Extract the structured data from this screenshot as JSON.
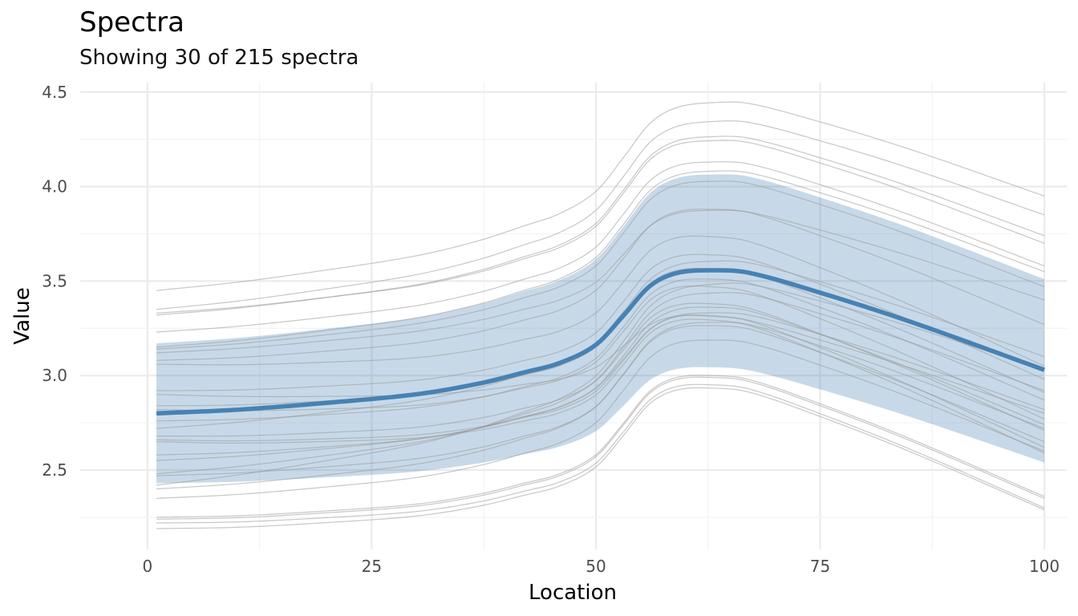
{
  "chart_data": {
    "type": "line",
    "title": "Spectra",
    "subtitle": "Showing 30 of 215 spectra",
    "xlabel": "Location",
    "ylabel": "Value",
    "xlim": [
      -7.5,
      102.5
    ],
    "ylim": [
      2.08,
      4.55
    ],
    "x_ticks": [
      0,
      25,
      50,
      75,
      100
    ],
    "y_ticks": [
      2.5,
      3.0,
      3.5,
      4.0,
      4.5
    ],
    "x_tick_labels": [
      "0",
      "25",
      "50",
      "75",
      "100"
    ],
    "y_tick_labels": [
      "2.5",
      "3.0",
      "3.5",
      "4.0",
      "4.5"
    ],
    "grid": true,
    "shape_profile": {
      "x": [
        1,
        10,
        20,
        30,
        37,
        42,
        46,
        50,
        53,
        56,
        59,
        63,
        67,
        75,
        85,
        100
      ],
      "f": [
        0.0,
        0.03,
        0.08,
        0.14,
        0.21,
        0.28,
        0.34,
        0.45,
        0.62,
        0.8,
        0.88,
        0.9,
        0.89,
        0.78,
        0.62,
        0.35
      ]
    },
    "mean": {
      "name": "mean",
      "start": 2.8,
      "peak_rise": 0.9,
      "end": 3.03,
      "color": "#4682B4"
    },
    "band": {
      "name": "mean ± 1 sd",
      "color": "#4682B4",
      "opacity": 0.3,
      "upper": {
        "start": 3.17,
        "peak_rise": 1.0,
        "end": 3.51
      },
      "lower": {
        "start": 2.43,
        "peak_rise": 0.8,
        "end": 2.54
      }
    },
    "spectra_color": "#999999",
    "spectra": [
      {
        "start": 3.45,
        "peak_rise": 1.0,
        "end": 3.95
      },
      {
        "start": 3.35,
        "peak_rise": 1.0,
        "end": 3.85
      },
      {
        "start": 3.32,
        "peak_rise": 1.0,
        "end": 3.74
      },
      {
        "start": 3.33,
        "peak_rise": 1.0,
        "end": 3.7
      },
      {
        "start": 3.23,
        "peak_rise": 1.0,
        "end": 3.58
      },
      {
        "start": 3.15,
        "peak_rise": 1.0,
        "end": 3.55
      },
      {
        "start": 3.14,
        "peak_rise": 1.0,
        "end": 3.47
      },
      {
        "start": 3.08,
        "peak_rise": 1.0,
        "end": 3.27
      },
      {
        "start": 3.06,
        "peak_rise": 1.0,
        "end": 3.05
      },
      {
        "start": 2.92,
        "peak_rise": 1.0,
        "end": 2.98
      },
      {
        "start": 2.84,
        "peak_rise": 1.0,
        "end": 2.91
      },
      {
        "start": 2.82,
        "peak_rise": 1.0,
        "end": 2.77
      },
      {
        "start": 2.76,
        "peak_rise": 1.0,
        "end": 2.87
      },
      {
        "start": 2.68,
        "peak_rise": 1.0,
        "end": 2.71
      },
      {
        "start": 2.66,
        "peak_rise": 1.0,
        "end": 2.62
      },
      {
        "start": 2.65,
        "peak_rise": 1.0,
        "end": 2.59
      },
      {
        "start": 2.58,
        "peak_rise": 1.0,
        "end": 2.74
      },
      {
        "start": 2.48,
        "peak_rise": 1.0,
        "end": 2.92
      },
      {
        "start": 2.47,
        "peak_rise": 1.0,
        "end": 2.65
      },
      {
        "start": 2.42,
        "peak_rise": 1.0,
        "end": 3.03
      },
      {
        "start": 2.4,
        "peak_rise": 1.0,
        "end": 2.72
      },
      {
        "start": 2.35,
        "peak_rise": 1.0,
        "end": 2.6
      },
      {
        "start": 2.25,
        "peak_rise": 1.0,
        "end": 2.36
      },
      {
        "start": 2.24,
        "peak_rise": 1.0,
        "end": 2.35
      },
      {
        "start": 2.22,
        "peak_rise": 1.0,
        "end": 2.3
      },
      {
        "start": 2.19,
        "peak_rise": 1.0,
        "end": 2.29
      },
      {
        "start": 3.12,
        "peak_rise": 0.85,
        "end": 3.4
      },
      {
        "start": 2.9,
        "peak_rise": 0.7,
        "end": 2.8
      },
      {
        "start": 2.72,
        "peak_rise": 0.95,
        "end": 3.1
      },
      {
        "start": 2.55,
        "peak_rise": 0.9,
        "end": 2.82
      }
    ]
  }
}
